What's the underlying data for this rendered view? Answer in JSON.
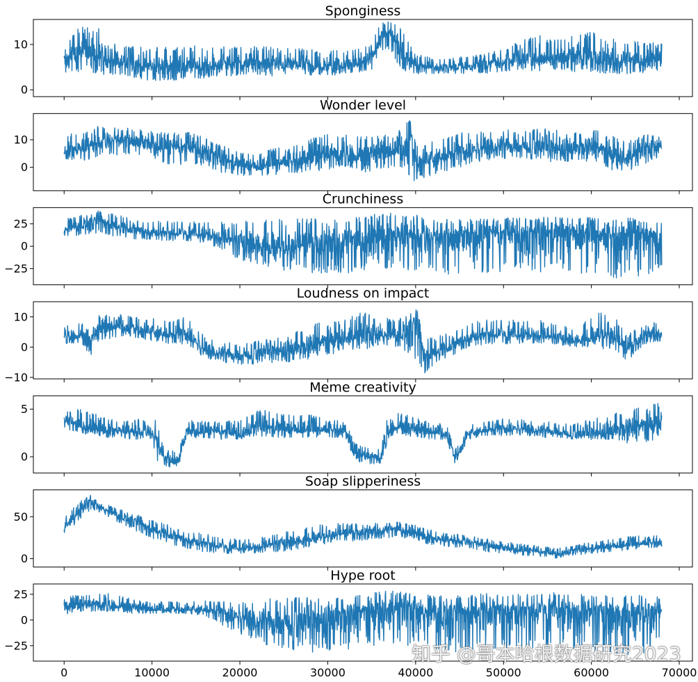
{
  "watermark": "知乎 @哥本哈根数据研究2023",
  "chart_data": {
    "type": "line",
    "shared_x": true,
    "xlim": [
      -3500,
      71500
    ],
    "x_ticks": [
      0,
      10000,
      20000,
      30000,
      40000,
      50000,
      60000,
      70000
    ],
    "x_tick_labels": [
      "0",
      "10000",
      "20000",
      "30000",
      "40000",
      "50000",
      "60000",
      "70000"
    ],
    "color": "#1f77b4",
    "grid": false,
    "panels": [
      {
        "title": "Sponginess",
        "ylim": [
          -1.5,
          15.5
        ],
        "y_ticks": [
          0,
          10
        ],
        "y_tick_labels": [
          "0",
          "10"
        ],
        "x": [
          0,
          2000,
          4000,
          6000,
          8000,
          10000,
          12000,
          14000,
          16000,
          18000,
          20000,
          22000,
          24000,
          26000,
          28000,
          30000,
          32000,
          34000,
          35000,
          36000,
          37000,
          38000,
          39000,
          40000,
          42000,
          44000,
          46000,
          48000,
          50000,
          52000,
          54000,
          56000,
          58000,
          60000,
          62000,
          64000,
          66000,
          68000
        ],
        "values": [
          6.5,
          8,
          8,
          6,
          5.5,
          5,
          5,
          5,
          5.5,
          5.5,
          6,
          5.5,
          5.5,
          5.5,
          5,
          5,
          5.5,
          6,
          7,
          11,
          13,
          10,
          7,
          5.5,
          5,
          5,
          5,
          5.5,
          6,
          6.5,
          6.5,
          7,
          7,
          7,
          6.5,
          6.5,
          6.5,
          7
        ],
        "lower": [
          3.5,
          4,
          3.5,
          3,
          2.5,
          2,
          2,
          2.5,
          2.5,
          3,
          3,
          3,
          3,
          3,
          3,
          3,
          3.5,
          4,
          4.5,
          8,
          9,
          5,
          4,
          3.5,
          3.5,
          3.5,
          3.5,
          3.5,
          4,
          4.5,
          4,
          4.5,
          4,
          4,
          3.5,
          3.5,
          3.5,
          3.5
        ],
        "upper": [
          10,
          14.5,
          13.5,
          10,
          9.5,
          9.5,
          9.5,
          9.5,
          10,
          9.5,
          10,
          9.5,
          9.5,
          9.5,
          9,
          8.5,
          9,
          9.5,
          10,
          15,
          15,
          15,
          11,
          8,
          7,
          7,
          7.5,
          8,
          9,
          11,
          12,
          11,
          12,
          13,
          12,
          11,
          10.5,
          10.5
        ]
      },
      {
        "title": "Wonder level",
        "ylim": [
          -8.5,
          19.5
        ],
        "y_ticks": [
          0,
          10
        ],
        "y_tick_labels": [
          "0",
          "10"
        ],
        "x": [
          0,
          2000,
          4000,
          6000,
          8000,
          10000,
          12000,
          14000,
          16000,
          18000,
          20000,
          22000,
          24000,
          26000,
          28000,
          30000,
          32000,
          34000,
          36000,
          38000,
          39500,
          40000,
          42000,
          44000,
          46000,
          48000,
          50000,
          52000,
          54000,
          56000,
          58000,
          60000,
          62000,
          64000,
          66000,
          68000
        ],
        "values": [
          6,
          7,
          9,
          10,
          9,
          8,
          7,
          7,
          6,
          3,
          1,
          0,
          1.5,
          2,
          3,
          4.5,
          5.5,
          4,
          5.5,
          6,
          10,
          2,
          3,
          5,
          6,
          7.5,
          8,
          7.5,
          7.5,
          7,
          7,
          7.5,
          5,
          3,
          6,
          8
        ],
        "lower": [
          3,
          2,
          4,
          4,
          5,
          3,
          1,
          1,
          0,
          -2,
          -3,
          -3,
          -3,
          -2,
          -2,
          -1,
          0,
          -2,
          -1,
          0,
          -7,
          -5,
          -3,
          -1,
          1,
          2,
          3,
          3,
          2,
          2,
          2,
          2,
          -1,
          -2,
          1,
          3
        ],
        "upper": [
          12,
          13,
          15,
          14.5,
          14,
          13,
          13,
          13,
          11,
          8,
          6,
          5,
          7,
          8,
          10,
          14,
          12,
          11,
          12,
          13,
          18,
          9,
          10,
          12,
          13,
          13.5,
          14,
          13,
          14,
          14,
          13,
          14,
          12,
          9,
          12,
          13
        ]
      },
      {
        "title": "Crunchiness",
        "ylim": [
          -43,
          43
        ],
        "y_ticks": [
          -25,
          0,
          25
        ],
        "y_tick_labels": [
          "−25",
          "0",
          "25"
        ],
        "x": [
          0,
          2000,
          4000,
          6000,
          8000,
          10000,
          12000,
          14000,
          16000,
          18000,
          20000,
          22000,
          24000,
          26000,
          28000,
          30000,
          32000,
          34000,
          36000,
          38000,
          40000,
          42000,
          44000,
          46000,
          48000,
          50000,
          52000,
          54000,
          56000,
          58000,
          60000,
          62000,
          64000,
          66000,
          68000
        ],
        "values": [
          18,
          24,
          28,
          22,
          18,
          15,
          14,
          14,
          13,
          10,
          5,
          2,
          0,
          0,
          3,
          5,
          8,
          8,
          12,
          14,
          12,
          10,
          8,
          12,
          14,
          14,
          14,
          15,
          17,
          16,
          14,
          12,
          12,
          13,
          12
        ],
        "lower": [
          10,
          12,
          15,
          10,
          8,
          7,
          6,
          6,
          3,
          -5,
          -15,
          -20,
          -25,
          -30,
          -30,
          -30,
          -30,
          -30,
          -28,
          -25,
          -28,
          -30,
          -33,
          -30,
          -30,
          -28,
          -28,
          -30,
          -20,
          -33,
          -32,
          -35,
          -38,
          -35,
          -28
        ],
        "upper": [
          30,
          35,
          40,
          35,
          30,
          28,
          28,
          27,
          28,
          27,
          28,
          30,
          30,
          30,
          32,
          32,
          32,
          33,
          38,
          38,
          35,
          30,
          30,
          30,
          32,
          32,
          32,
          32,
          35,
          33,
          32,
          30,
          32,
          30,
          30
        ]
      },
      {
        "title": "Loudness on impact",
        "ylim": [
          -10.5,
          15
        ],
        "y_ticks": [
          -10,
          0,
          10
        ],
        "y_tick_labels": [
          "−10",
          "0",
          "10"
        ],
        "x": [
          0,
          2000,
          3000,
          4000,
          6000,
          8000,
          10000,
          12000,
          14000,
          16000,
          18000,
          20000,
          22000,
          24000,
          26000,
          28000,
          30000,
          32000,
          34000,
          36000,
          38000,
          40000,
          41000,
          42000,
          44000,
          46000,
          48000,
          50000,
          52000,
          54000,
          56000,
          58000,
          60000,
          62000,
          64000,
          66000,
          68000
        ],
        "values": [
          4,
          4,
          2,
          6,
          7,
          6,
          5,
          4,
          4.5,
          -1,
          -2,
          -3,
          -2,
          -1,
          -0.5,
          0,
          2,
          3,
          3,
          4,
          4,
          7,
          -3,
          -2,
          0,
          3,
          4,
          4,
          4,
          4,
          3,
          2,
          3,
          5,
          -1,
          4,
          5
        ],
        "lower": [
          1,
          1,
          -3,
          2,
          3,
          3,
          2,
          1,
          1,
          -4,
          -5,
          -6,
          -6,
          -5,
          -5,
          -4,
          -3,
          -1,
          -1,
          0,
          0,
          -4,
          -9,
          -6,
          -3,
          0,
          1,
          1,
          1,
          1,
          1,
          0,
          0,
          -1,
          -5,
          1,
          2
        ],
        "upper": [
          7,
          8,
          5,
          11,
          11,
          10,
          10,
          9,
          10,
          4,
          2,
          1,
          2,
          3,
          5,
          8,
          8,
          9,
          12,
          10,
          9,
          14,
          4,
          3,
          5,
          8,
          9,
          9,
          9,
          9,
          8,
          6,
          10,
          13,
          4,
          8,
          9
        ]
      },
      {
        "title": "Meme creativity",
        "ylim": [
          -1.7,
          6.4
        ],
        "y_ticks": [
          0,
          5
        ],
        "y_tick_labels": [
          "0",
          "5"
        ],
        "x": [
          0,
          2000,
          4000,
          6000,
          8000,
          10000,
          10500,
          11500,
          12500,
          13000,
          14000,
          16000,
          18000,
          20000,
          22000,
          24000,
          26000,
          28000,
          30000,
          32000,
          33000,
          35000,
          36000,
          37000,
          38000,
          40000,
          42000,
          43500,
          44500,
          46000,
          48000,
          50000,
          52000,
          54000,
          56000,
          58000,
          60000,
          62000,
          64000,
          66000,
          68000
        ],
        "values": [
          3.8,
          3.2,
          2.8,
          2.8,
          2.6,
          2.5,
          1.5,
          -0.3,
          -0.6,
          -0.5,
          2.6,
          2.6,
          2.6,
          2.2,
          3.2,
          3,
          2.8,
          2.8,
          2.8,
          2.8,
          0.2,
          0,
          0,
          3,
          3.2,
          2.8,
          2.6,
          2.4,
          -0.2,
          2.4,
          2.8,
          3,
          3,
          2.8,
          2.6,
          2.2,
          2.4,
          2.6,
          3,
          3.2,
          3.5
        ],
        "lower": [
          3,
          2.4,
          2,
          2,
          1.8,
          1.8,
          -0.5,
          -1,
          -1.2,
          -1,
          1.8,
          2,
          1.8,
          1.8,
          2.2,
          2,
          2,
          2,
          2,
          2,
          -0.5,
          -0.8,
          -0.8,
          2,
          2.4,
          2,
          1.8,
          1.6,
          -0.8,
          1.8,
          2.2,
          2.2,
          2.2,
          2,
          2,
          1.8,
          1.8,
          1.8,
          1.4,
          1.2,
          2.2
        ],
        "upper": [
          5,
          5,
          4.4,
          3.8,
          4,
          3.8,
          4,
          0.6,
          0.8,
          0.5,
          3.8,
          3.8,
          3.8,
          3.8,
          5,
          4.8,
          4.6,
          4.4,
          4,
          3.8,
          1.5,
          1,
          1,
          5,
          4.6,
          4.2,
          3.6,
          3.4,
          0.8,
          3.4,
          3.8,
          4,
          4,
          3.8,
          3.6,
          3.4,
          4,
          4.6,
          5,
          5.2,
          5.8
        ]
      },
      {
        "title": "Soap slipperiness",
        "ylim": [
          -10,
          82
        ],
        "y_ticks": [
          0,
          50
        ],
        "y_tick_labels": [
          "0",
          "50"
        ],
        "x": [
          0,
          1000,
          2000,
          3000,
          4000,
          6000,
          8000,
          10000,
          12000,
          14000,
          16000,
          18000,
          20000,
          22000,
          24000,
          26000,
          28000,
          30000,
          32000,
          34000,
          36000,
          38000,
          40000,
          42000,
          44000,
          46000,
          48000,
          50000,
          52000,
          54000,
          56000,
          58000,
          60000,
          62000,
          64000,
          66000,
          68000
        ],
        "values": [
          38,
          48,
          58,
          68,
          62,
          52,
          44,
          35,
          28,
          22,
          18,
          14,
          12,
          14,
          18,
          20,
          24,
          28,
          30,
          32,
          34,
          36,
          30,
          24,
          22,
          20,
          16,
          12,
          10,
          8,
          5,
          10,
          12,
          14,
          16,
          18,
          20
        ],
        "lower": [
          30,
          38,
          48,
          58,
          54,
          44,
          34,
          24,
          18,
          12,
          8,
          6,
          6,
          6,
          8,
          10,
          14,
          18,
          20,
          22,
          24,
          26,
          20,
          16,
          14,
          12,
          8,
          6,
          4,
          3,
          0,
          4,
          6,
          8,
          10,
          12,
          14
        ],
        "upper": [
          48,
          60,
          70,
          76,
          68,
          60,
          54,
          46,
          40,
          32,
          30,
          24,
          24,
          24,
          30,
          34,
          38,
          42,
          42,
          42,
          44,
          44,
          40,
          34,
          30,
          28,
          24,
          20,
          18,
          16,
          12,
          16,
          20,
          24,
          26,
          28,
          28
        ]
      },
      {
        "title": "Hype root",
        "ylim": [
          -40,
          35
        ],
        "y_ticks": [
          -25,
          0,
          25
        ],
        "y_tick_labels": [
          "−25",
          "0",
          "25"
        ],
        "x": [
          0,
          2000,
          4000,
          6000,
          8000,
          10000,
          12000,
          14000,
          16000,
          18000,
          20000,
          22000,
          24000,
          26000,
          28000,
          30000,
          32000,
          34000,
          36000,
          38000,
          40000,
          42000,
          44000,
          46000,
          48000,
          50000,
          52000,
          54000,
          56000,
          58000,
          60000,
          62000,
          64000,
          66000,
          68000
        ],
        "values": [
          12,
          14,
          16,
          14,
          12,
          10,
          10,
          10,
          10,
          8,
          4,
          0,
          -2,
          -2,
          0,
          4,
          6,
          8,
          10,
          12,
          10,
          8,
          6,
          8,
          10,
          10,
          10,
          10,
          12,
          10,
          10,
          8,
          8,
          10,
          10
        ],
        "lower": [
          4,
          8,
          8,
          8,
          6,
          6,
          6,
          6,
          4,
          -5,
          -15,
          -22,
          -28,
          -32,
          -32,
          -30,
          -30,
          -28,
          -25,
          -25,
          -28,
          -30,
          -32,
          -30,
          -28,
          -28,
          -28,
          -28,
          -25,
          -32,
          -30,
          -33,
          -35,
          -33,
          -28
        ],
        "upper": [
          22,
          25,
          28,
          24,
          20,
          18,
          18,
          18,
          20,
          18,
          18,
          20,
          22,
          22,
          22,
          22,
          24,
          24,
          28,
          28,
          26,
          24,
          24,
          24,
          26,
          26,
          25,
          25,
          27,
          25,
          25,
          24,
          24,
          24,
          22
        ]
      }
    ]
  }
}
